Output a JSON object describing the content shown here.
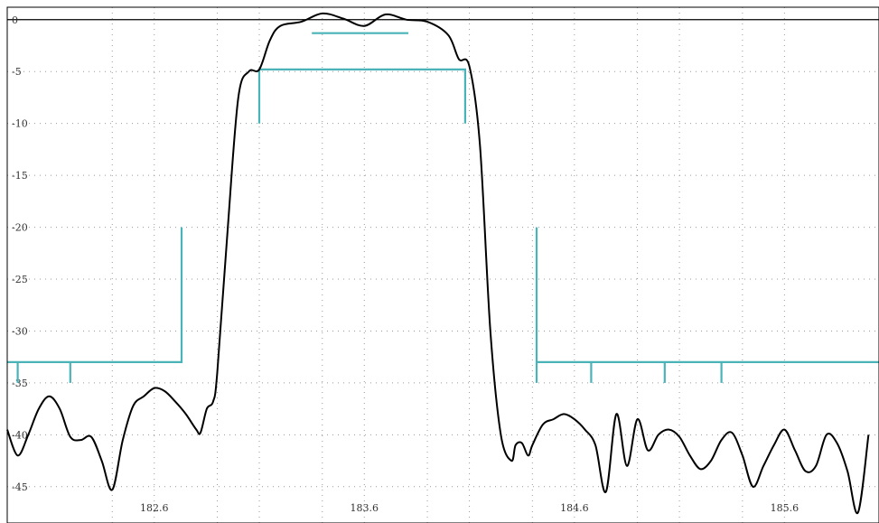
{
  "colors": {
    "background": "#ffffff",
    "frame": "#000000",
    "grid": "#9a9a9a",
    "response_line": "#000000",
    "mask_line": "#4ab3b8",
    "tick_text": "#333333"
  },
  "chart_data": {
    "type": "line",
    "title": "",
    "xlabel": "",
    "ylabel": "",
    "xlim": [
      181.9,
      186.05
    ],
    "ylim": [
      -48.5,
      1.2
    ],
    "grid": true,
    "legend": "none",
    "x_ticks": [
      182.6,
      183.6,
      184.6,
      185.6
    ],
    "x_tick_labels": [
      "182.6",
      "183.6",
      "184.6",
      "185.6"
    ],
    "y_ticks": [
      0,
      -5,
      -10,
      -15,
      -20,
      -25,
      -30,
      -35,
      -40,
      -45
    ],
    "y_tick_labels": [
      "0",
      "-5",
      "-10",
      "-15",
      "-20",
      "-25",
      "-30",
      "-35",
      "-40",
      "-45"
    ],
    "x_minor_grid": [
      181.9,
      182.4,
      182.9,
      183.1,
      183.4,
      183.9,
      184.1,
      184.4,
      184.9,
      185.1,
      185.4
    ],
    "reference_line_y": 0,
    "series": [
      {
        "x": [
          181.9,
          181.95,
          182.0,
          182.05,
          182.1,
          182.15,
          182.2,
          182.25,
          182.3,
          182.35,
          182.4,
          182.45,
          182.5,
          182.55,
          182.6,
          182.65,
          182.7,
          182.75,
          182.8,
          182.82,
          182.85,
          182.88,
          182.9,
          182.95,
          183.0,
          183.05,
          183.1,
          183.15,
          183.2,
          183.3,
          183.4,
          183.5,
          183.6,
          183.7,
          183.8,
          183.9,
          184.0,
          184.05,
          184.1,
          184.15,
          184.2,
          184.25,
          184.3,
          184.32,
          184.35,
          184.38,
          184.4,
          184.45,
          184.5,
          184.55,
          184.6,
          184.65,
          184.7,
          184.75,
          184.8,
          184.85,
          184.9,
          184.95,
          185.0,
          185.05,
          185.1,
          185.15,
          185.2,
          185.25,
          185.3,
          185.35,
          185.4,
          185.45,
          185.5,
          185.55,
          185.6,
          185.65,
          185.7,
          185.75,
          185.8,
          185.85,
          185.9,
          185.95,
          186.0
        ],
        "y": [
          -39.5,
          -42.0,
          -40.0,
          -37.5,
          -36.3,
          -37.5,
          -40.2,
          -40.5,
          -40.2,
          -42.5,
          -45.3,
          -40.5,
          -37.2,
          -36.3,
          -35.5,
          -35.8,
          -36.8,
          -38.0,
          -39.5,
          -39.8,
          -37.5,
          -36.8,
          -34.0,
          -20.0,
          -7.5,
          -5.0,
          -4.8,
          -2.0,
          -0.6,
          -0.2,
          0.6,
          0.1,
          -0.6,
          0.5,
          0.0,
          -0.2,
          -1.5,
          -3.8,
          -4.5,
          -12.0,
          -30.0,
          -40.0,
          -42.5,
          -41.0,
          -40.8,
          -42.0,
          -41.0,
          -39.0,
          -38.5,
          -38.0,
          -38.5,
          -39.5,
          -41.0,
          -45.5,
          -38.0,
          -43.0,
          -38.5,
          -41.5,
          -40.0,
          -39.5,
          -40.2,
          -42.0,
          -43.3,
          -42.5,
          -40.5,
          -39.8,
          -42.0,
          -45.0,
          -43.0,
          -41.0,
          -39.5,
          -41.5,
          -43.5,
          -43.0,
          -40.0,
          -40.8,
          -43.5,
          -47.5,
          -40.0
        ]
      }
    ],
    "mask_lines": [
      [
        [
          181.9,
          -33.0
        ],
        [
          182.73,
          -33.0
        ],
        [
          182.73,
          -20.0
        ]
      ],
      [
        [
          181.95,
          -33.0
        ],
        [
          181.95,
          -35.0
        ]
      ],
      [
        [
          182.2,
          -33.0
        ],
        [
          182.2,
          -35.0
        ]
      ],
      [
        [
          183.1,
          -10.0
        ],
        [
          183.1,
          -4.8
        ],
        [
          184.08,
          -4.8
        ],
        [
          184.08,
          -10.0
        ]
      ],
      [
        [
          183.35,
          -1.3
        ],
        [
          183.81,
          -1.3
        ]
      ],
      [
        [
          184.42,
          -20.0
        ],
        [
          184.42,
          -35.0
        ]
      ],
      [
        [
          184.42,
          -33.0
        ],
        [
          186.05,
          -33.0
        ]
      ],
      [
        [
          184.68,
          -33.0
        ],
        [
          184.68,
          -35.0
        ]
      ],
      [
        [
          185.03,
          -33.0
        ],
        [
          185.03,
          -35.0
        ]
      ],
      [
        [
          185.3,
          -33.0
        ],
        [
          185.3,
          -35.0
        ]
      ]
    ]
  }
}
